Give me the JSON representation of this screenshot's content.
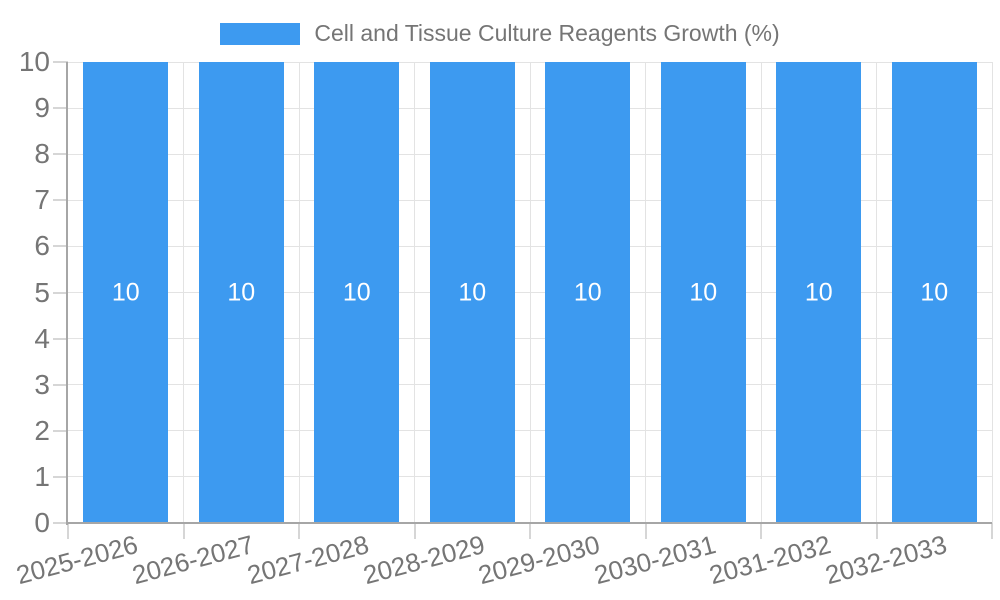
{
  "legend": {
    "label": "Cell and Tissue Culture Reagents Growth (%)"
  },
  "chart_data": {
    "type": "bar",
    "title": "Cell and Tissue Culture Reagents Growth (%)",
    "categories": [
      "2025-2026",
      "2026-2027",
      "2027-2028",
      "2028-2029",
      "2029-2030",
      "2030-2031",
      "2031-2032",
      "2032-2033"
    ],
    "values": [
      10,
      10,
      10,
      10,
      10,
      10,
      10,
      10
    ],
    "value_labels": [
      "10",
      "10",
      "10",
      "10",
      "10",
      "10",
      "10",
      "10"
    ],
    "xlabel": "",
    "ylabel": "",
    "ylim": [
      0,
      10
    ],
    "yticks": [
      0,
      1,
      2,
      3,
      4,
      5,
      6,
      7,
      8,
      9,
      10
    ],
    "grid": true,
    "legend_position": "top",
    "colors": {
      "bar": "#3D9AF0",
      "axis_text": "#757575",
      "value_label_text": "#FFFFFF",
      "gridline": "#E3E3E3",
      "tick": "#D6D6D6",
      "axis_line": "#A6A6A6",
      "background": "#FFFFFF"
    }
  }
}
